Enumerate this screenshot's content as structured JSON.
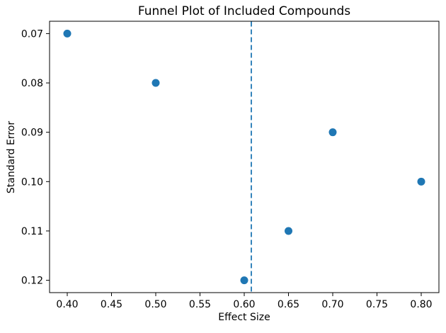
{
  "figure": {
    "background": "#ffffff"
  },
  "chart_data": {
    "type": "scatter",
    "title": "Funnel Plot of Included Compounds",
    "xlabel": "Effect Size",
    "ylabel": "Standard Error",
    "points": [
      {
        "x": 0.4,
        "y": 0.07
      },
      {
        "x": 0.5,
        "y": 0.08
      },
      {
        "x": 0.7,
        "y": 0.09
      },
      {
        "x": 0.8,
        "y": 0.1
      },
      {
        "x": 0.65,
        "y": 0.11
      },
      {
        "x": 0.6,
        "y": 0.12
      }
    ],
    "marker_color": "#1f77b4",
    "marker_radius_px": 5.5,
    "vline": {
      "x": 0.608,
      "color": "#1f77b4",
      "style": "dashed"
    },
    "xlim": [
      0.38,
      0.82
    ],
    "ylim": [
      0.1225,
      0.0675
    ],
    "y_axis_inverted": true,
    "xticks": [
      0.4,
      0.45,
      0.5,
      0.55,
      0.6,
      0.65,
      0.7,
      0.75,
      0.8
    ],
    "xtick_labels": [
      "0.40",
      "0.45",
      "0.50",
      "0.55",
      "0.60",
      "0.65",
      "0.70",
      "0.75",
      "0.80"
    ],
    "yticks": [
      0.07,
      0.08,
      0.09,
      0.1,
      0.11,
      0.12
    ],
    "ytick_labels": [
      "0.07",
      "0.08",
      "0.09",
      "0.10",
      "0.11",
      "0.12"
    ],
    "grid": false,
    "legend": null,
    "axis_color": "#000000",
    "text_color": "#000000"
  }
}
